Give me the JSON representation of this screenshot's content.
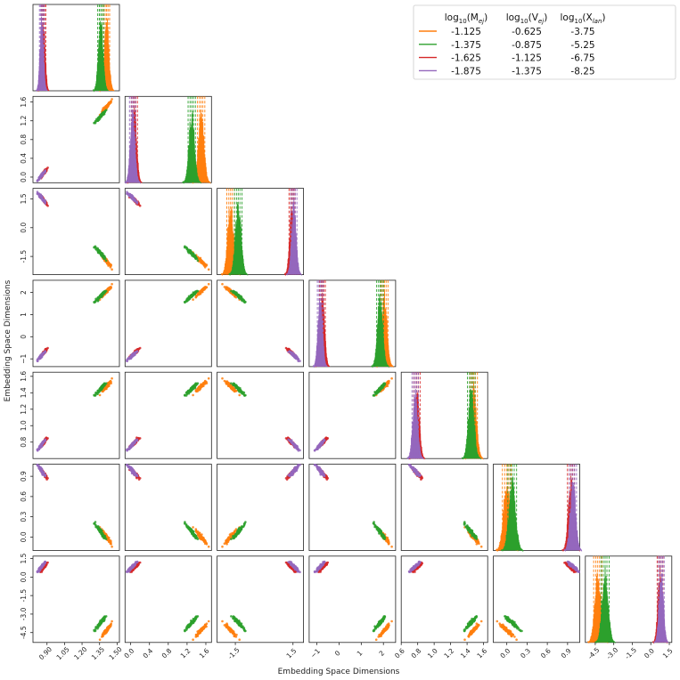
{
  "chart_data": {
    "type": "scatter",
    "title": "",
    "xlabel": "Embedding Space Dimensions",
    "ylabel": "Embedding Space Dimensions",
    "legend": {
      "placement": "top-right",
      "headers": [
        "log₁₀(Mₑⱼ)",
        "log₁₀(Vₑⱼ)",
        "log₁₀(Xₗₐₙ)"
      ],
      "header_parts": [
        {
          "pre": "log",
          "sub": "10",
          "mid": "(M",
          "sub2": "ej",
          "post": ")"
        },
        {
          "pre": "log",
          "sub": "10",
          "mid": "(V",
          "sub2": "ej",
          "post": ")"
        },
        {
          "pre": "log",
          "sub": "10",
          "mid": "(X",
          "sub2": "lan",
          "post": ")"
        }
      ],
      "entries": [
        {
          "color": "#ff7f0e",
          "values": [
            "-1.125",
            "-0.625",
            "-3.75"
          ]
        },
        {
          "color": "#2ca02c",
          "values": [
            "-1.375",
            "-0.875",
            "-5.25"
          ]
        },
        {
          "color": "#d62728",
          "values": [
            "-1.625",
            "-1.125",
            "-6.75"
          ]
        },
        {
          "color": "#9467bd",
          "values": [
            "-1.875",
            "-1.375",
            "-8.25"
          ]
        }
      ]
    },
    "dimensions": [
      {
        "range": [
          0.78,
          1.52
        ],
        "xticks": [
          0.9,
          1.05,
          1.2,
          1.35,
          1.5
        ],
        "xtick_labels": [
          "0.90",
          "1.05",
          "1.20",
          "1.35",
          "1.50"
        ],
        "yticks": [],
        "ytick_labels": []
      },
      {
        "range": [
          -0.12,
          1.72
        ],
        "xticks": [
          0.0,
          0.4,
          0.8,
          1.2,
          1.6
        ],
        "xtick_labels": [
          "0.0",
          "0.4",
          "0.8",
          "1.2",
          "1.6"
        ],
        "yticks": [
          0.0,
          0.4,
          0.8,
          1.2,
          1.6
        ],
        "ytick_labels": [
          "0.0",
          "0.4",
          "0.8",
          "1.2",
          "1.6"
        ]
      },
      {
        "range": [
          -2.45,
          2.05
        ],
        "xticks": [
          -1.5,
          1.5
        ],
        "xtick_labels": [
          "-1.5",
          "1.5"
        ],
        "yticks": [
          -1.5,
          0.0,
          1.5
        ],
        "ytick_labels": [
          "-1.5",
          "0.0",
          "1.5"
        ]
      },
      {
        "range": [
          -1.35,
          2.55
        ],
        "xticks": [
          -1,
          0,
          1,
          2
        ],
        "xtick_labels": [
          "−1",
          "0",
          "1",
          "2"
        ],
        "yticks": [
          -1,
          0,
          1,
          2
        ],
        "ytick_labels": [
          "−1",
          "0",
          "1",
          "2"
        ]
      },
      {
        "range": [
          0.6,
          1.65
        ],
        "xticks": [
          0.6,
          0.8,
          1.0,
          1.2,
          1.4,
          1.6
        ],
        "xtick_labels": [
          "0.6",
          "0.8",
          "1.0",
          "1.2",
          "1.4",
          "1.6"
        ],
        "yticks": [
          0.8,
          1.0,
          1.2,
          1.4,
          1.6
        ],
        "ytick_labels": [
          "0.8",
          "1.0",
          "1.2",
          "1.4",
          "1.6"
        ]
      },
      {
        "range": [
          -0.2,
          1.08
        ],
        "xticks": [
          0.0,
          0.3,
          0.6,
          0.9
        ],
        "xtick_labels": [
          "0.0",
          "0.3",
          "0.6",
          "0.9"
        ],
        "yticks": [
          0.0,
          0.3,
          0.6,
          0.9
        ],
        "ytick_labels": [
          "0.0",
          "0.3",
          "0.6",
          "0.9"
        ]
      },
      {
        "range": [
          -5.3,
          1.7
        ],
        "xticks": [
          -4.5,
          -3.0,
          -1.5,
          0.0,
          1.5
        ],
        "xtick_labels": [
          "-4.5",
          "-3.0",
          "-1.5",
          "0.0",
          "1.5"
        ],
        "yticks": [
          -4.5,
          -3.0,
          -1.5,
          0.0,
          1.5
        ],
        "ytick_labels": [
          "-4.5",
          "-3.0",
          "-1.5",
          "0.0",
          "1.5"
        ]
      }
    ],
    "series": [
      {
        "name": "-1.125 / -0.625 / -3.75",
        "color": "#ff7f0e",
        "centroid": [
          1.41,
          1.5,
          -1.75,
          2.05,
          1.48,
          0.0,
          -4.3
        ],
        "spread": [
          0.02,
          0.06,
          0.15,
          0.12,
          0.035,
          0.05,
          0.25
        ]
      },
      {
        "name": "-1.375 / -0.875 / -5.25",
        "color": "#2ca02c",
        "centroid": [
          1.36,
          1.3,
          -1.35,
          1.85,
          1.45,
          0.08,
          -3.7
        ],
        "spread": [
          0.02,
          0.06,
          0.15,
          0.12,
          0.035,
          0.05,
          0.25
        ]
      },
      {
        "name": "-1.625 / -1.125 / -6.75",
        "color": "#d62728",
        "centroid": [
          0.87,
          0.08,
          1.45,
          -0.75,
          0.79,
          0.95,
          0.75
        ],
        "spread": [
          0.015,
          0.05,
          0.12,
          0.1,
          0.03,
          0.04,
          0.18
        ]
      },
      {
        "name": "-1.875 / -1.375 / -8.25",
        "color": "#9467bd",
        "centroid": [
          0.855,
          0.04,
          1.55,
          -0.85,
          0.77,
          0.98,
          0.85
        ],
        "spread": [
          0.015,
          0.05,
          0.12,
          0.1,
          0.03,
          0.04,
          0.18
        ]
      }
    ]
  }
}
